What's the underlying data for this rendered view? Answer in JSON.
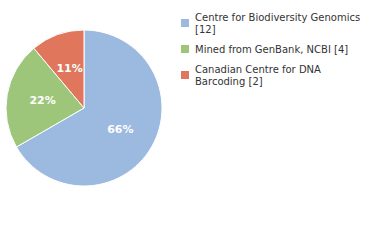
{
  "chart_data": {
    "type": "pie",
    "categories": [
      "Centre for Biodiversity Genomics [12]",
      "Mined from GenBank, NCBI [4]",
      "Canadian Centre for DNA Barcoding [2]"
    ],
    "values": [
      66,
      22,
      11
    ],
    "value_labels": [
      "66%",
      "22%",
      "11%"
    ],
    "colors": [
      "#9cb9df",
      "#9dc67b",
      "#e0765c"
    ],
    "data_labels": true,
    "legend": "top-right"
  }
}
